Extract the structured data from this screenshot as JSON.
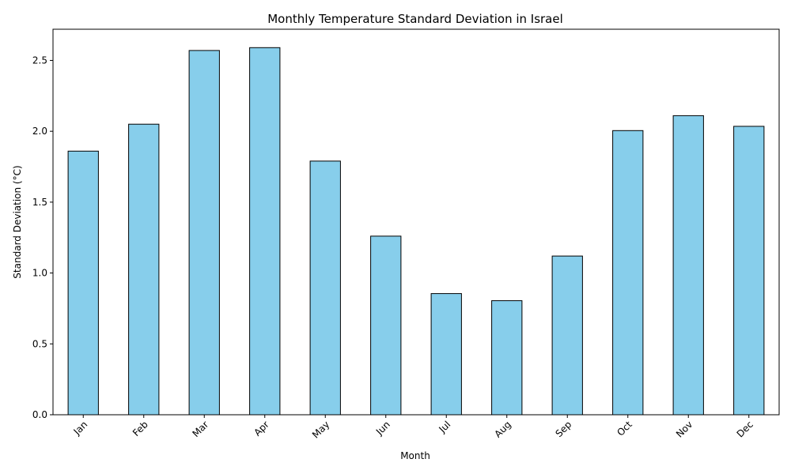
{
  "chart_data": {
    "type": "bar",
    "title": "Monthly Temperature Standard Deviation in Israel",
    "xlabel": "Month",
    "ylabel": "Standard Deviation (°C)",
    "categories": [
      "Jan",
      "Feb",
      "Mar",
      "Apr",
      "May",
      "Jun",
      "Jul",
      "Aug",
      "Sep",
      "Oct",
      "Nov",
      "Dec"
    ],
    "values": [
      1.86,
      2.05,
      2.57,
      2.59,
      1.79,
      1.26,
      0.855,
      0.805,
      1.12,
      2.005,
      2.11,
      2.035
    ],
    "ylim": [
      0,
      2.72
    ],
    "yticks": [
      "0.0",
      "0.5",
      "1.0",
      "1.5",
      "2.0",
      "2.5"
    ],
    "grid": false,
    "colors": {
      "bar_fill": "#87ceeb",
      "bar_edge": "#000000"
    }
  }
}
